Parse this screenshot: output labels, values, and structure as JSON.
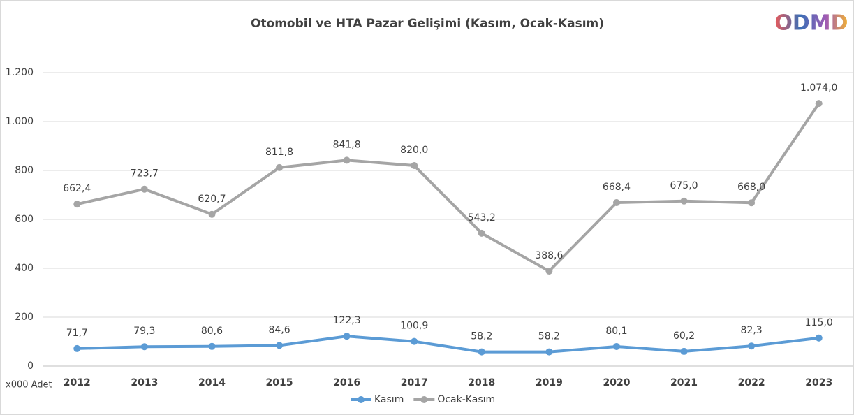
{
  "chart_data": {
    "type": "line",
    "title": "Otomobil ve HTA Pazar Gelişimi (Kasım, Ocak-Kasım)",
    "logo": "ODMD",
    "unit_note": "x000 Adet",
    "categories": [
      "2012",
      "2013",
      "2014",
      "2015",
      "2016",
      "2017",
      "2018",
      "2019",
      "2020",
      "2021",
      "2022",
      "2023"
    ],
    "series": [
      {
        "name": "Kasım",
        "color": "#5b9bd5",
        "values": [
          71.7,
          79.3,
          80.6,
          84.6,
          122.3,
          100.9,
          58.2,
          58.2,
          80.1,
          60.2,
          82.3,
          115.0
        ],
        "value_labels": [
          "71,7",
          "79,3",
          "80,6",
          "84,6",
          "122,3",
          "100,9",
          "58,2",
          "58,2",
          "80,1",
          "60,2",
          "82,3",
          "115,0"
        ]
      },
      {
        "name": "Ocak-Kasım",
        "color": "#a5a5a5",
        "values": [
          662.4,
          723.7,
          620.7,
          811.8,
          841.8,
          820.0,
          543.2,
          388.6,
          668.4,
          675.0,
          668.0,
          1074.0
        ],
        "value_labels": [
          "662,4",
          "723,7",
          "620,7",
          "811,8",
          "841,8",
          "820,0",
          "543,2",
          "388,6",
          "668,4",
          "675,0",
          "668,0",
          "1.074,0"
        ]
      }
    ],
    "ylim": [
      0,
      1200
    ],
    "yticks": [
      0,
      200,
      400,
      600,
      800,
      {
        "value": 1000,
        "label": "1.000"
      },
      {
        "value": 1200,
        "label": "1.200"
      }
    ],
    "grid": true,
    "legend": "bottom"
  }
}
